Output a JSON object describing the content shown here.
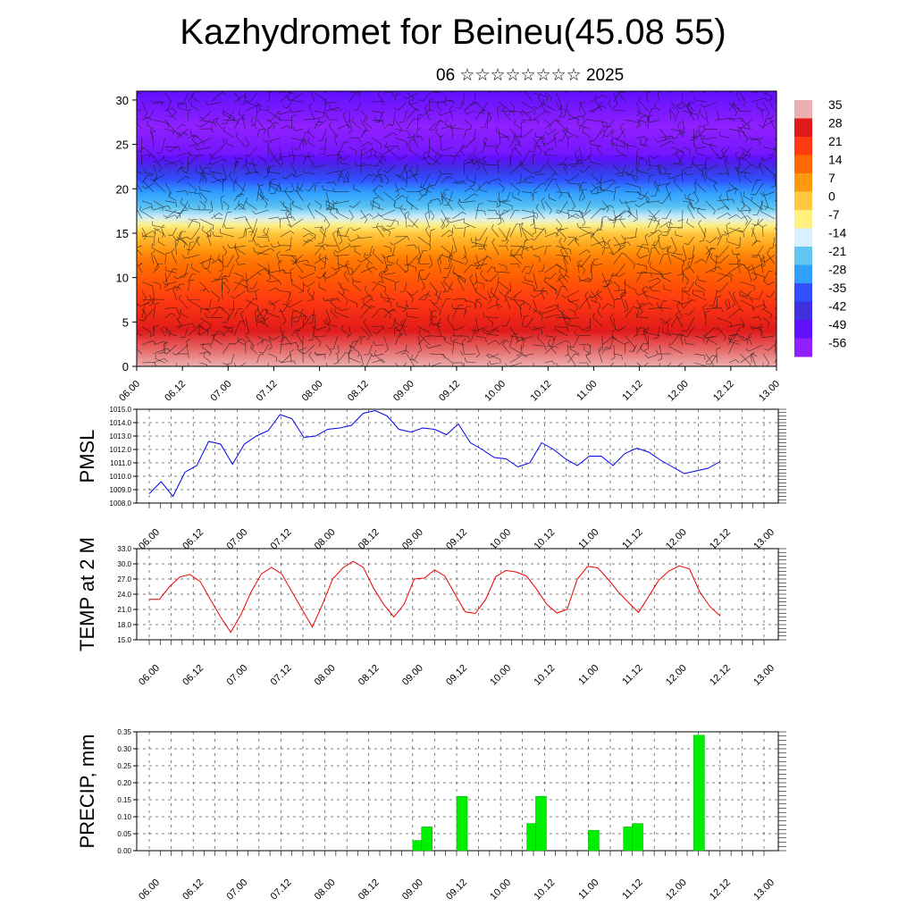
{
  "header": {
    "title": "Kazhydromet for Beineu(45.08 55)",
    "subtitle": "06 ☆☆☆☆☆☆☆☆ 2025"
  },
  "chart_data": [
    {
      "type": "heatmap",
      "title": "Kazhydromet for Beineu(45.08 55)",
      "x_ticks": [
        "06.00",
        "06.12",
        "07.00",
        "07.12",
        "08.00",
        "08.12",
        "09.00",
        "09.12",
        "10.00",
        "10.12",
        "11.00",
        "11.12",
        "12.00",
        "12.12",
        "13.00"
      ],
      "y_ticks": [
        0,
        5,
        10,
        15,
        20,
        25,
        30
      ],
      "ylim": [
        0,
        31
      ],
      "colorbar_labels": [
        "35",
        "28",
        "21",
        "14",
        "7",
        "0",
        "-7",
        "-14",
        "-21",
        "-28",
        "-35",
        "-42",
        "-49",
        "-56"
      ],
      "colorbar_colors": [
        "#ecb0b0",
        "#e01a1a",
        "#ff3a10",
        "#ff6a00",
        "#ff9a10",
        "#ffc840",
        "#fff080",
        "#d8f0ff",
        "#60c8f0",
        "#30a0ff",
        "#3050ff",
        "#4030e0",
        "#6010ff",
        "#9020ff"
      ],
      "profile": {
        "heights": [
          0,
          4,
          8,
          12,
          15,
          16.5,
          18,
          20,
          22,
          24,
          27,
          31
        ],
        "temps": [
          35,
          28,
          20,
          12,
          0,
          -12,
          -22,
          -30,
          -40,
          -52,
          -56,
          -49
        ]
      },
      "wind_barbs": true
    },
    {
      "type": "line",
      "ylabel": "PMSL",
      "x_ticks": [
        "06.00",
        "06.12",
        "07.00",
        "07.12",
        "08.00",
        "08.12",
        "09.00",
        "09.12",
        "10.00",
        "10.12",
        "11.00",
        "11.12",
        "12.00",
        "12.12",
        "13.00"
      ],
      "y_ticks": [
        "1008.0",
        "1009.0",
        "1010.0",
        "1011.0",
        "1012.0",
        "1013.0",
        "1014.0",
        "1015.0"
      ],
      "ylim": [
        1008,
        1015
      ],
      "color": "#0000ee",
      "values": [
        1008.7,
        1009.6,
        1008.5,
        1010.3,
        1010.8,
        1012.6,
        1012.4,
        1010.9,
        1012.4,
        1013.0,
        1013.4,
        1014.6,
        1014.3,
        1012.9,
        1013.0,
        1013.5,
        1013.6,
        1013.8,
        1014.7,
        1014.9,
        1014.5,
        1013.5,
        1013.3,
        1013.6,
        1013.5,
        1013.1,
        1013.9,
        1012.5,
        1012.0,
        1011.4,
        1011.3,
        1010.7,
        1011.0,
        1012.5,
        1012.0,
        1011.3,
        1010.8,
        1011.5,
        1011.5,
        1010.8,
        1011.7,
        1012.1,
        1011.8,
        1011.2,
        1010.7,
        1010.2,
        1010.4,
        1010.6,
        1011.1
      ]
    },
    {
      "type": "line",
      "ylabel": "TEMP at 2 M",
      "x_ticks": [
        "06.00",
        "06.12",
        "07.00",
        "07.12",
        "08.00",
        "08.12",
        "09.00",
        "09.12",
        "10.00",
        "10.12",
        "11.00",
        "11.12",
        "12.00",
        "12.12",
        "13.00"
      ],
      "y_ticks": [
        "15.0",
        "18.0",
        "21.0",
        "24.0",
        "27.0",
        "30.0",
        "33.0"
      ],
      "ylim": [
        15,
        33
      ],
      "color": "#ee0000",
      "values": [
        23.0,
        23.0,
        25.5,
        27.4,
        27.9,
        26.5,
        23.0,
        19.5,
        16.5,
        20.0,
        24.5,
        28.0,
        29.3,
        28.0,
        24.5,
        21.0,
        17.5,
        22.0,
        27.0,
        29.2,
        30.5,
        29.3,
        25.2,
        22.0,
        19.5,
        22.0,
        27.0,
        27.2,
        28.8,
        27.6,
        24.0,
        20.5,
        20.2,
        23.0,
        27.5,
        28.7,
        28.4,
        27.6,
        25.0,
        22.0,
        20.3,
        21.0,
        27.0,
        29.5,
        29.2,
        27.0,
        24.5,
        22.4,
        20.4,
        23.6,
        26.8,
        28.6,
        29.6,
        29.0,
        24.5,
        21.6,
        19.7
      ]
    },
    {
      "type": "bar",
      "ylabel": "PRECIP, mm",
      "x_ticks": [
        "06.00",
        "06.12",
        "07.00",
        "07.12",
        "08.00",
        "08.12",
        "09.00",
        "09.12",
        "10.00",
        "10.12",
        "11.00",
        "11.12",
        "12.00",
        "12.12",
        "13.00"
      ],
      "y_ticks": [
        "0.00",
        "0.05",
        "0.10",
        "0.15",
        "0.20",
        "0.25",
        "0.30",
        "0.35"
      ],
      "ylim": [
        0,
        0.35
      ],
      "color": "#00ee00",
      "bars": [
        {
          "x": 3.0,
          "value": 0.03
        },
        {
          "x": 3.1,
          "value": 0.07
        },
        {
          "x": 3.5,
          "value": 0.16
        },
        {
          "x": 4.3,
          "value": 0.08
        },
        {
          "x": 4.4,
          "value": 0.16
        },
        {
          "x": 5.0,
          "value": 0.06
        },
        {
          "x": 5.4,
          "value": 0.07
        },
        {
          "x": 5.5,
          "value": 0.08
        },
        {
          "x": 6.2,
          "value": 0.34
        }
      ]
    }
  ]
}
